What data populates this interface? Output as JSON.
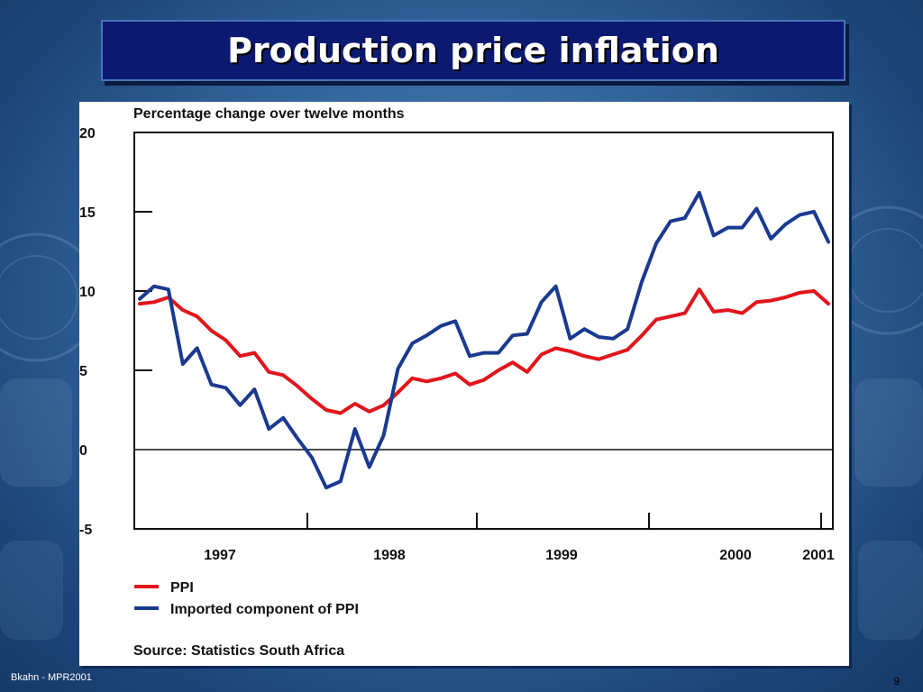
{
  "slide": {
    "title": "Production price inflation",
    "footer_left": "Bkahn - MPR2001",
    "page_number": "9"
  },
  "chart_data": {
    "type": "line",
    "title": "Percentage change over twelve months",
    "xlabel": "",
    "ylabel": "",
    "ylim": [
      -5,
      20
    ],
    "y_ticks": [
      20,
      15,
      10,
      5,
      0,
      -5
    ],
    "y_tick_labels": [
      "20",
      "15",
      "10",
      "5",
      "0",
      "-5"
    ],
    "x_labels": [
      "1997",
      "1998",
      "1999",
      "2000",
      "2001"
    ],
    "source": "Source: Statistics South Africa",
    "grid": false,
    "legend_position": "bottom-left",
    "series": [
      {
        "name": "PPI",
        "color": "#e3141b",
        "values": [
          9.2,
          9.3,
          9.6,
          8.8,
          8.4,
          7.5,
          6.9,
          5.9,
          6.1,
          4.9,
          4.7,
          4.0,
          3.2,
          2.5,
          2.3,
          2.9,
          2.4,
          2.8,
          3.6,
          4.5,
          4.3,
          4.5,
          4.8,
          4.1,
          4.4,
          5.0,
          5.5,
          4.9,
          6.0,
          6.4,
          6.2,
          5.9,
          5.7,
          6.0,
          6.3,
          7.2,
          8.2,
          8.4,
          8.6,
          10.1,
          8.7,
          8.8,
          8.6,
          9.3,
          9.4,
          9.6,
          9.9,
          10.0,
          9.2
        ]
      },
      {
        "name": "Imported component of PPI",
        "color": "#1a3a8f",
        "values": [
          9.5,
          10.3,
          10.1,
          5.4,
          6.4,
          4.1,
          3.9,
          2.8,
          3.8,
          1.3,
          2.0,
          0.7,
          -0.5,
          -2.4,
          -2.0,
          1.3,
          -1.1,
          0.9,
          5.1,
          6.7,
          7.2,
          7.8,
          8.1,
          5.9,
          6.1,
          6.1,
          7.2,
          7.3,
          9.3,
          10.3,
          7.0,
          7.6,
          7.1,
          7.0,
          7.6,
          10.6,
          13.0,
          14.4,
          14.6,
          16.2,
          13.5,
          14.0,
          14.0,
          15.2,
          13.3,
          14.2,
          14.8,
          15.0,
          13.1
        ]
      }
    ]
  }
}
